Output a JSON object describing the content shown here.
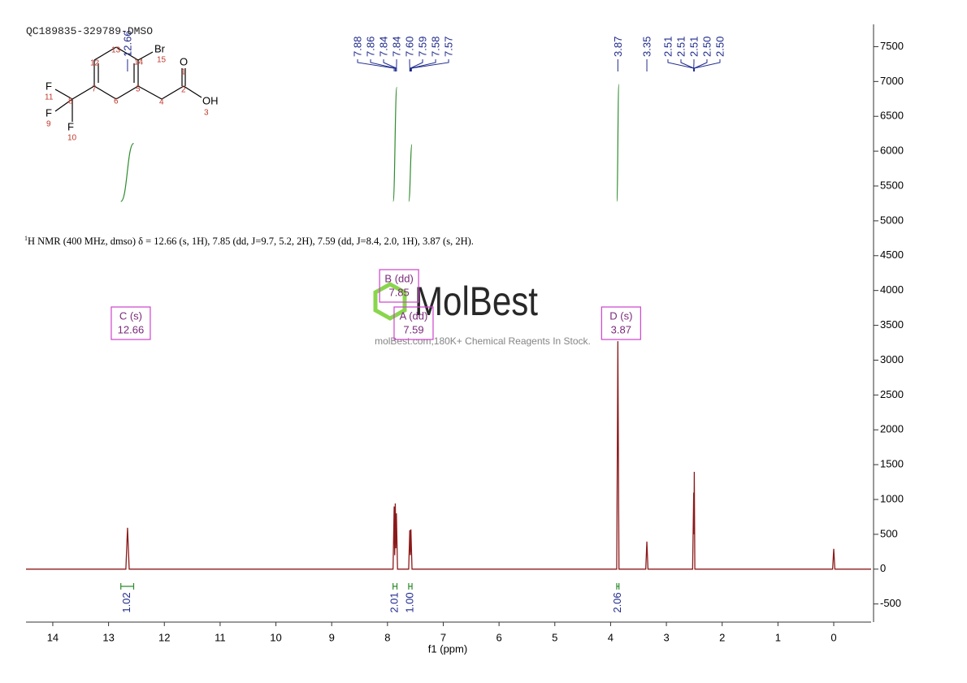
{
  "sample_name": "QC189835-329789-DMSO",
  "molecule": {
    "atoms": [
      "Br",
      "O",
      "OH",
      "F",
      "F",
      "F"
    ],
    "numbers": [
      "15",
      "14",
      "13",
      "12",
      "7",
      "5",
      "6",
      "4",
      "2",
      "1",
      "3",
      "11",
      "8",
      "9",
      "10"
    ]
  },
  "description": {
    "superscript": "1",
    "text": "H NMR (400 MHz, dmso) δ = 12.66 (s, 1H), 7.85 (dd, J=9.7, 5.2, 2H), 7.59 (dd, J=8.4, 2.0, 1H), 3.87 (s, 2H)."
  },
  "watermark": {
    "brand": "MolBest",
    "tagline": "molBest.com,180K+ Chemical Reagents In Stock."
  },
  "chart_data": {
    "type": "line",
    "x_label": "f1 (ppm)",
    "xlim": [
      14.48,
      -0.67
    ],
    "xticks": [
      14,
      13,
      12,
      11,
      10,
      9,
      8,
      7,
      6,
      5,
      4,
      3,
      2,
      1,
      0
    ],
    "ylim": [
      -760,
      7820
    ],
    "yticks": [
      -500,
      0,
      500,
      1000,
      1500,
      2000,
      2500,
      3000,
      3500,
      4000,
      4500,
      5000,
      5500,
      6000,
      6500,
      7000,
      7500
    ],
    "series": [
      {
        "color": "#8b1a1a",
        "x": [
          14.48,
          12.69,
          12.66,
          12.63,
          7.9,
          7.88,
          7.87,
          7.86,
          7.85,
          7.84,
          7.82,
          7.62,
          7.6,
          7.59,
          7.58,
          7.56,
          3.89,
          3.87,
          3.85,
          3.37,
          3.35,
          3.33,
          2.53,
          2.51,
          2.505,
          2.5,
          2.49,
          0.02,
          0,
          -0.02,
          -0.67
        ],
        "values": [
          0,
          0,
          594,
          0,
          0,
          900,
          200,
          943,
          300,
          800,
          0,
          0,
          560,
          200,
          570,
          0,
          0,
          3272,
          0,
          0,
          396,
          0,
          0,
          1100,
          500,
          1397,
          0,
          0,
          291,
          0,
          0
        ]
      }
    ],
    "label_color": "#1f2a8c",
    "peak_labels": [
      {
        "value": 12.66,
        "label": "12.66"
      },
      {
        "value": 7.88,
        "label": "7.88"
      },
      {
        "value": 7.86,
        "label": "7.86"
      },
      {
        "value": 7.84,
        "label": "7.84"
      },
      {
        "value": 7.84,
        "label": "7.84"
      },
      {
        "value": 7.6,
        "label": "7.60"
      },
      {
        "value": 7.59,
        "label": "7.59"
      },
      {
        "value": 7.58,
        "label": "7.58"
      },
      {
        "value": 7.57,
        "label": "7.57"
      },
      {
        "value": 3.87,
        "label": "3.87"
      },
      {
        "value": 3.35,
        "label": "3.35"
      },
      {
        "value": 2.51,
        "label": "2.51"
      },
      {
        "value": 2.51,
        "label": "2.51"
      },
      {
        "value": 2.51,
        "label": "2.51"
      },
      {
        "value": 2.5,
        "label": "2.50"
      },
      {
        "value": 2.5,
        "label": "2.50"
      }
    ],
    "box_color": "#cc44cc",
    "multiplets": [
      {
        "name": "C (s)",
        "shift": 12.66
      },
      {
        "name": "B (dd)",
        "shift": 7.85
      },
      {
        "name": "A (dd)",
        "shift": 7.59
      },
      {
        "name": "D (s)",
        "shift": 3.87
      }
    ],
    "integrals": {
      "color": "#2e8b2e",
      "ranges": [
        [
          12.78,
          12.55
        ],
        [
          7.9,
          7.83
        ],
        [
          7.62,
          7.56
        ],
        [
          3.89,
          3.85
        ]
      ],
      "values": [
        1.02,
        2.01,
        1.0,
        2.06
      ],
      "value_labels": [
        "1.02",
        "2.01",
        "1.00",
        "2.06"
      ]
    }
  }
}
